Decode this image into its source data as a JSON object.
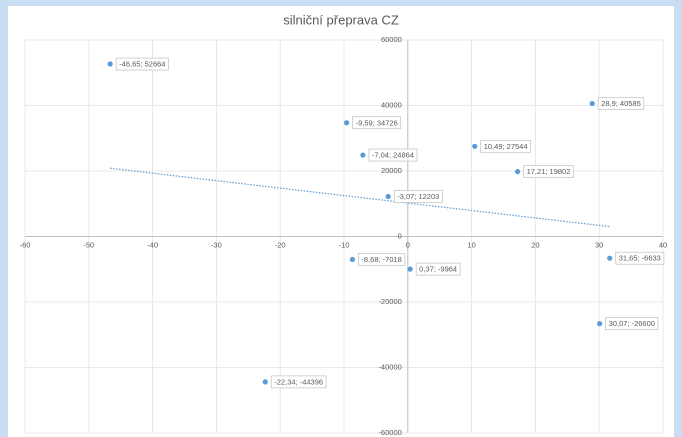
{
  "chart_data": {
    "type": "scatter",
    "title": "silniční přeprava CZ",
    "x": [
      -46.65,
      -9.59,
      -7.04,
      -3.07,
      10.49,
      17.21,
      28.9,
      -8.68,
      0.37,
      31.65,
      30.07,
      -22.34
    ],
    "values": [
      52664,
      34726,
      24864,
      12203,
      27544,
      19802,
      40585,
      -7018,
      -9964,
      -6633,
      -26600,
      -44396
    ],
    "value_labels": [
      "-46,65; 52664",
      "-9,59; 34726",
      "-7,04; 24864",
      "-3,07; 12203",
      "10,49; 27544",
      "17,21; 19802",
      "28,9; 40585",
      "-8,68; -7018",
      "0,37; -9964",
      "31,65; -6633",
      "30,07; -26600",
      "-22,34; -44396"
    ],
    "color": "#5b9bd5",
    "trendline": "linear",
    "trendline_color": "#5b9bd5",
    "xlim": [
      -60,
      40
    ],
    "xticks": [
      -60,
      -50,
      -40,
      -30,
      -20,
      -10,
      0,
      10,
      20,
      30,
      40
    ],
    "ylim": [
      -60000,
      60000
    ],
    "yticks": [
      -60000,
      -40000,
      -20000,
      0,
      20000,
      40000,
      60000
    ],
    "grid": true
  }
}
